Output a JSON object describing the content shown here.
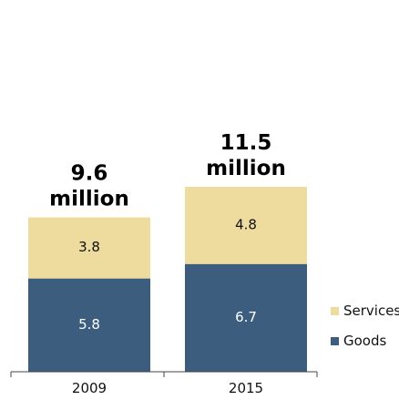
{
  "chart_data": {
    "type": "bar",
    "stacked": true,
    "categories": [
      "2009",
      "2015"
    ],
    "series": [
      {
        "name": "Goods",
        "values": [
          5.8,
          6.7
        ],
        "color": "#3c5d7e",
        "label_color": "#ffffff"
      },
      {
        "name": "Services",
        "values": [
          3.8,
          4.8
        ],
        "color": "#eedb9e",
        "label_color": "#111111"
      }
    ],
    "segment_labels": [
      [
        "5.8",
        "6.7"
      ],
      [
        "3.8",
        "4.8"
      ]
    ],
    "totals": [
      {
        "value": "9.6",
        "unit": "million"
      },
      {
        "value": "11.5",
        "unit": "million"
      }
    ],
    "title": "",
    "xlabel": "",
    "ylabel": "",
    "legend_position": "bottom-right",
    "grid": false
  }
}
